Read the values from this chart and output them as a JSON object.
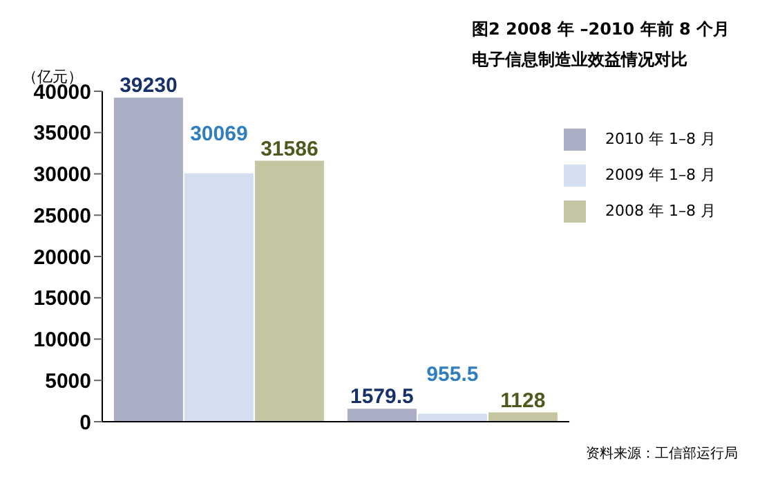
{
  "chart_data": {
    "type": "bar",
    "title": "图2 2008 年 –2010 年前 8 个月",
    "subtitle": "电子信息制造业效益情况对比",
    "ylabel": "（亿元）",
    "annotations": [
      "资料来源：工信部运行局"
    ],
    "categories": [
      null,
      null
    ],
    "series": [
      {
        "name": "2010 年 1–8 月",
        "color": "#a9aec4",
        "values": [
          39230,
          1579.5
        ]
      },
      {
        "name": "2009 年 1–8 月",
        "color": "#d3dff1",
        "values": [
          30069,
          955.5
        ]
      },
      {
        "name": "2008 年 1–8 月",
        "color": "#c6c5a2",
        "values": [
          31586,
          1128
        ]
      }
    ],
    "ylim": [
      0,
      40000
    ],
    "yticks": [
      0,
      5000,
      10000,
      15000,
      20000,
      25000,
      30000,
      35000,
      40000
    ],
    "data_labels": true,
    "legend": "top right",
    "grid": false
  }
}
